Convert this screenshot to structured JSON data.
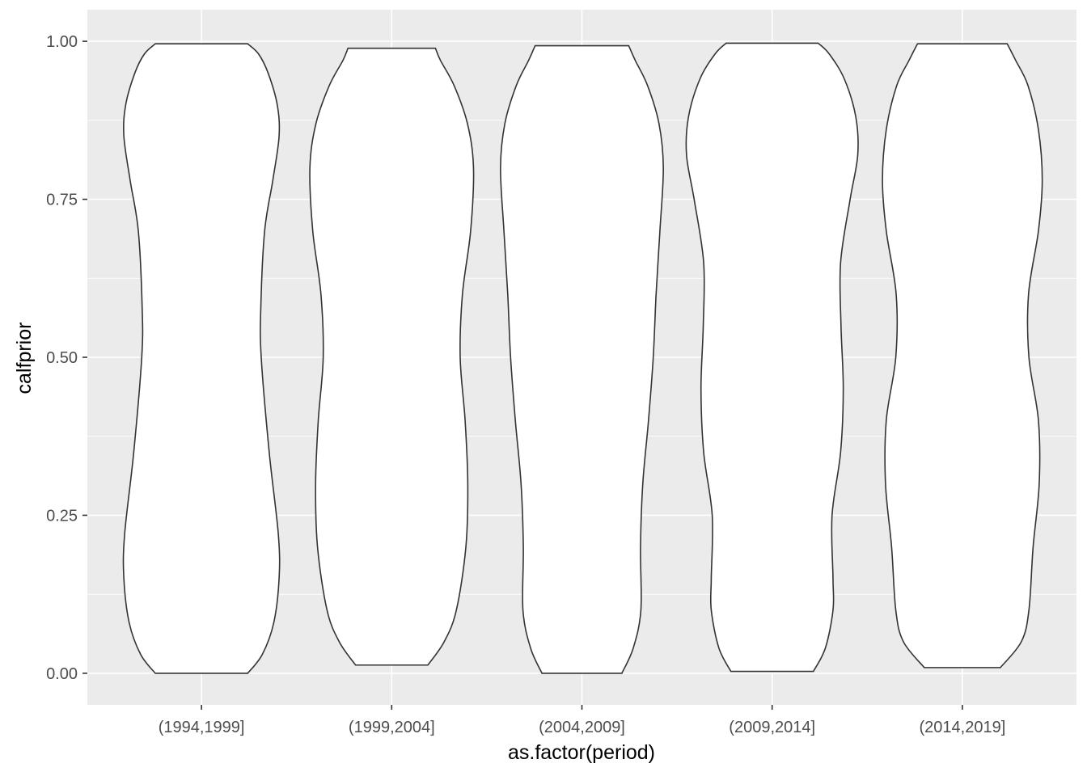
{
  "chart_data": {
    "type": "violin",
    "xlabel": "as.factor(period)",
    "ylabel": "calfprior",
    "categories": [
      "(1994,1999]",
      "(1999,2004]",
      "(2004,2009]",
      "(2009,2014]",
      "(2014,2019]"
    ],
    "ylim": [
      -0.05,
      1.05
    ],
    "y_ticks": [
      0.0,
      0.25,
      0.5,
      0.75,
      1.0
    ],
    "y_tick_labels": [
      "0.00",
      "0.25",
      "0.50",
      "0.75",
      "1.00"
    ],
    "grid": true,
    "legend": "none",
    "colors": {
      "panel": "#ebebeb",
      "grid": "#ffffff",
      "violin_fill": "#ffffff",
      "violin_stroke": "#333333"
    },
    "violins": [
      {
        "category": "(1994,1999]",
        "y_min": 0.0,
        "y_max": 0.996,
        "profile": [
          {
            "y": 0.0,
            "half_width": 0.243
          },
          {
            "y": 0.03,
            "half_width": 0.32
          },
          {
            "y": 0.08,
            "half_width": 0.38
          },
          {
            "y": 0.15,
            "half_width": 0.408
          },
          {
            "y": 0.22,
            "half_width": 0.404
          },
          {
            "y": 0.35,
            "half_width": 0.356
          },
          {
            "y": 0.5,
            "half_width": 0.314
          },
          {
            "y": 0.58,
            "half_width": 0.312
          },
          {
            "y": 0.7,
            "half_width": 0.332
          },
          {
            "y": 0.78,
            "half_width": 0.375
          },
          {
            "y": 0.85,
            "half_width": 0.408
          },
          {
            "y": 0.9,
            "half_width": 0.398
          },
          {
            "y": 0.95,
            "half_width": 0.35
          },
          {
            "y": 0.98,
            "half_width": 0.3
          },
          {
            "y": 0.996,
            "half_width": 0.243
          }
        ]
      },
      {
        "category": "(1999,2004]",
        "y_min": 0.013,
        "y_max": 0.989,
        "profile": [
          {
            "y": 0.013,
            "half_width": 0.19
          },
          {
            "y": 0.05,
            "half_width": 0.276
          },
          {
            "y": 0.1,
            "half_width": 0.34
          },
          {
            "y": 0.2,
            "half_width": 0.39
          },
          {
            "y": 0.3,
            "half_width": 0.4
          },
          {
            "y": 0.4,
            "half_width": 0.386
          },
          {
            "y": 0.5,
            "half_width": 0.36
          },
          {
            "y": 0.6,
            "half_width": 0.372
          },
          {
            "y": 0.7,
            "half_width": 0.415
          },
          {
            "y": 0.8,
            "half_width": 0.43
          },
          {
            "y": 0.87,
            "half_width": 0.398
          },
          {
            "y": 0.93,
            "half_width": 0.328
          },
          {
            "y": 0.97,
            "half_width": 0.256
          },
          {
            "y": 0.989,
            "half_width": 0.23
          }
        ]
      },
      {
        "category": "(2004,2009]",
        "y_min": 0.0,
        "y_max": 0.993,
        "profile": [
          {
            "y": 0.0,
            "half_width": 0.21
          },
          {
            "y": 0.04,
            "half_width": 0.27
          },
          {
            "y": 0.1,
            "half_width": 0.31
          },
          {
            "y": 0.2,
            "half_width": 0.308
          },
          {
            "y": 0.3,
            "half_width": 0.32
          },
          {
            "y": 0.4,
            "half_width": 0.35
          },
          {
            "y": 0.5,
            "half_width": 0.375
          },
          {
            "y": 0.6,
            "half_width": 0.39
          },
          {
            "y": 0.7,
            "half_width": 0.41
          },
          {
            "y": 0.8,
            "half_width": 0.428
          },
          {
            "y": 0.87,
            "half_width": 0.405
          },
          {
            "y": 0.93,
            "half_width": 0.345
          },
          {
            "y": 0.97,
            "half_width": 0.28
          },
          {
            "y": 0.993,
            "half_width": 0.246
          }
        ]
      },
      {
        "category": "(2009,2014]",
        "y_min": 0.003,
        "y_max": 0.997,
        "profile": [
          {
            "y": 0.003,
            "half_width": 0.217
          },
          {
            "y": 0.04,
            "half_width": 0.28
          },
          {
            "y": 0.1,
            "half_width": 0.32
          },
          {
            "y": 0.15,
            "half_width": 0.32
          },
          {
            "y": 0.25,
            "half_width": 0.315
          },
          {
            "y": 0.35,
            "half_width": 0.36
          },
          {
            "y": 0.45,
            "half_width": 0.374
          },
          {
            "y": 0.55,
            "half_width": 0.362
          },
          {
            "y": 0.65,
            "half_width": 0.36
          },
          {
            "y": 0.75,
            "half_width": 0.41
          },
          {
            "y": 0.82,
            "half_width": 0.45
          },
          {
            "y": 0.88,
            "half_width": 0.44
          },
          {
            "y": 0.94,
            "half_width": 0.38
          },
          {
            "y": 0.98,
            "half_width": 0.3
          },
          {
            "y": 0.997,
            "half_width": 0.242
          }
        ]
      },
      {
        "category": "(2014,2019]",
        "y_min": 0.009,
        "y_max": 0.996,
        "profile": [
          {
            "y": 0.009,
            "half_width": 0.2
          },
          {
            "y": 0.05,
            "half_width": 0.31
          },
          {
            "y": 0.1,
            "half_width": 0.35
          },
          {
            "y": 0.2,
            "half_width": 0.372
          },
          {
            "y": 0.3,
            "half_width": 0.404
          },
          {
            "y": 0.4,
            "half_width": 0.4
          },
          {
            "y": 0.5,
            "half_width": 0.35
          },
          {
            "y": 0.6,
            "half_width": 0.348
          },
          {
            "y": 0.7,
            "half_width": 0.4
          },
          {
            "y": 0.78,
            "half_width": 0.42
          },
          {
            "y": 0.86,
            "half_width": 0.4
          },
          {
            "y": 0.93,
            "half_width": 0.345
          },
          {
            "y": 0.97,
            "half_width": 0.28
          },
          {
            "y": 0.996,
            "half_width": 0.236
          }
        ]
      }
    ]
  }
}
